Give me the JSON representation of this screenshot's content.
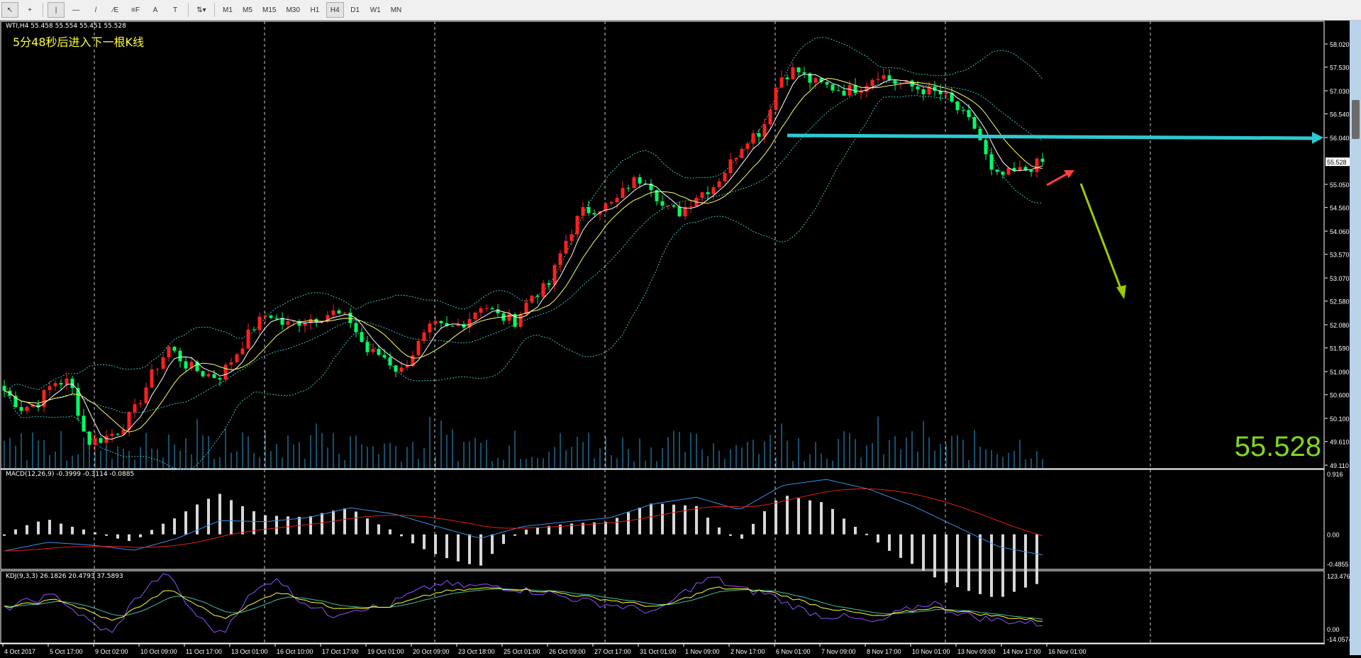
{
  "toolbar": {
    "tools": [
      {
        "icon": "cursor-icon",
        "glyph": "↖"
      },
      {
        "icon": "crosshair-icon",
        "glyph": "+"
      },
      {
        "icon": "vertical-line-icon",
        "glyph": "|"
      },
      {
        "icon": "horizontal-line-icon",
        "glyph": "—"
      },
      {
        "icon": "trendline-icon",
        "glyph": "/"
      },
      {
        "icon": "equidistant-channel-icon",
        "glyph": "∕E"
      },
      {
        "icon": "fibonacci-icon",
        "glyph": "≡F"
      },
      {
        "icon": "text-icon",
        "glyph": "A"
      },
      {
        "icon": "text-label-icon",
        "glyph": "T"
      },
      {
        "icon": "arrows-icon",
        "glyph": "⇅▾"
      }
    ],
    "timeframes": [
      "M1",
      "M5",
      "M15",
      "M30",
      "H1",
      "H4",
      "D1",
      "W1",
      "MN"
    ],
    "active_timeframe": "H4"
  },
  "chart": {
    "header": "WTI,H4  55.458 55.554 55.451 55.528",
    "timer_text": "5分48秒后进入下一根K线",
    "current_price": "55.528",
    "price_axis": [
      "58.020",
      "57.530",
      "57.030",
      "56.540",
      "56.040",
      "55.050",
      "54.560",
      "54.060",
      "53.570",
      "53.070",
      "52.580",
      "52.080",
      "51.590",
      "51.090",
      "50.600",
      "50.100",
      "49.610",
      "49.110"
    ],
    "macd_label": "MACD(12,26,9) -0.3999 -0.3114 -0.0885",
    "macd_axis": [
      "0.916",
      "0.00",
      "-0.4855"
    ],
    "kdj_label": "KDJ(9,3,3) 26.1826 20.4793 37.5893",
    "kdj_axis": [
      "123.4761",
      "0.00",
      "-14.0574"
    ],
    "time_axis": [
      "4 Oct 2017",
      "5 Oct 17:00",
      "9 Oct 02:00",
      "10 Oct 09:00",
      "11 Oct 17:00",
      "13 Oct 01:00",
      "16 Oct 10:00",
      "17 Oct 17:00",
      "19 Oct 01:00",
      "20 Oct 09:00",
      "23 Oct 18:00",
      "25 Oct 01:00",
      "26 Oct 09:00",
      "27 Oct 17:00",
      "31 Oct 01:00",
      "1 Nov 09:00",
      "2 Nov 17:00",
      "6 Nov 01:00",
      "7 Nov 09:00",
      "8 Nov 17:00",
      "10 Nov 01:00",
      "13 Nov 09:00",
      "14 Nov 17:00",
      "16 Nov 01:00"
    ],
    "colors": {
      "bull": "#ff2020",
      "bear": "#00ff66",
      "ma_fast": "#ffffff",
      "ma_slow": "#ffff66",
      "bands": "#40c0c0",
      "volume": "#2aa0d8",
      "macd_main": "#3a8ee6",
      "macd_signal": "#e02020",
      "kdj_k": "#ffff33",
      "kdj_d": "#40c0a0",
      "kdj_j": "#9050ff",
      "level_arrow": "#30c8d0",
      "forecast_arrow": "#99cc00",
      "big_price": "#7fd81e"
    }
  },
  "chart_data": {
    "type": "candlestick",
    "price_range": [
      49.11,
      58.02
    ],
    "close_path": [
      50.69,
      50.32,
      50.42,
      50.87,
      50.87,
      49.59,
      49.68,
      49.86,
      50.32,
      51.06,
      51.61,
      51.24,
      51.06,
      50.97,
      51.43,
      51.98,
      52.34,
      52.07,
      52.16,
      52.25,
      52.34,
      52.16,
      51.52,
      51.43,
      51.06,
      51.61,
      52.07,
      51.98,
      52.16,
      52.53,
      52.25,
      52.16,
      52.71,
      52.89,
      53.81,
      54.46,
      54.55,
      54.64,
      55.1,
      55.19,
      54.55,
      54.46,
      54.82,
      55.01,
      55.47,
      56.02,
      56.2,
      57.3,
      57.49,
      57.21,
      57.12,
      57.03,
      57.12,
      57.4,
      57.21,
      57.12,
      57.03,
      56.94,
      56.57,
      56.2,
      55.19,
      55.28,
      55.37,
      55.53
    ],
    "macd_path": [
      -0.25,
      -0.12,
      -0.16,
      -0.24,
      -0.06,
      0.21,
      0.19,
      0.25,
      0.4,
      0.31,
      0.12,
      -0.06,
      0.12,
      0.19,
      0.25,
      0.46,
      0.56,
      0.37,
      0.74,
      0.83,
      0.68,
      0.43,
      0.12,
      -0.19,
      -0.31
    ],
    "macd_range": [
      -0.4855,
      0.916
    ],
    "kdj_k_path": [
      53.9,
      70.1,
      24.8,
      91.1,
      29.6,
      86.3,
      53.9,
      53.9,
      86.3,
      94.4,
      86.3,
      70.1,
      53.9,
      94.4,
      86.3,
      53.9,
      34.5,
      53.9,
      37.7,
      26.2
    ],
    "kdj_range": [
      -14.0574,
      123.4761
    ]
  }
}
